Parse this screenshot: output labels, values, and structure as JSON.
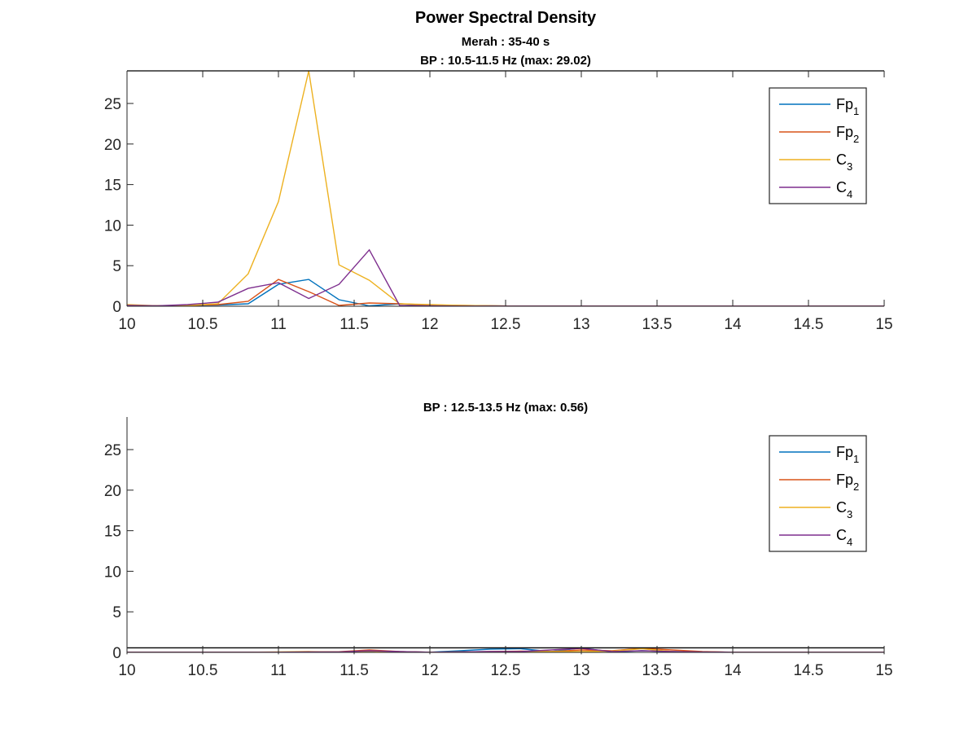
{
  "figure_title": "Power Spectral Density",
  "chart_data": [
    {
      "type": "line",
      "subtitle": "Merah : 35-40 s",
      "title": "BP : 10.5-11.5 Hz (max: 29.02)",
      "xlabel": "",
      "ylabel": "",
      "xlim": [
        10,
        15
      ],
      "ylim": [
        0,
        29.02
      ],
      "xticks": [
        "10",
        "10.5",
        "11",
        "11.5",
        "12",
        "12.5",
        "13",
        "13.5",
        "14",
        "14.5",
        "15"
      ],
      "yticks": [
        "0",
        "5",
        "10",
        "15",
        "20",
        "25"
      ],
      "grid": false,
      "legend": "top-right",
      "x": [
        10,
        10.2,
        10.4,
        10.6,
        10.8,
        11.0,
        11.2,
        11.4,
        11.6,
        11.8,
        12.0,
        12.2,
        12.4,
        12.6,
        12.8,
        13.0,
        13.2,
        13.4,
        13.6,
        13.8,
        14.0,
        14.2,
        14.4,
        14.6,
        14.8,
        15.0
      ],
      "series": [
        {
          "name": "Fp1",
          "base": "Fp",
          "sub": "1",
          "color": "#0072BD",
          "values": [
            0.05,
            0.05,
            0.1,
            0.15,
            0.3,
            2.7,
            3.3,
            0.8,
            0.05,
            0.3,
            0.1,
            0.05,
            0.05,
            0.02,
            0.02,
            0.02,
            0.02,
            0.02,
            0.02,
            0.02,
            0.02,
            0.02,
            0.02,
            0.02,
            0.02,
            0.02
          ]
        },
        {
          "name": "Fp2",
          "base": "Fp",
          "sub": "2",
          "color": "#D95319",
          "values": [
            0.1,
            0.05,
            0.1,
            0.2,
            0.6,
            3.3,
            1.8,
            0.1,
            0.4,
            0.3,
            0.15,
            0.1,
            0.05,
            0.02,
            0.02,
            0.02,
            0.02,
            0.02,
            0.02,
            0.02,
            0.02,
            0.02,
            0.02,
            0.02,
            0.02,
            0.02
          ]
        },
        {
          "name": "C3",
          "base": "C",
          "sub": "3",
          "color": "#EDB120",
          "values": [
            0.2,
            0.05,
            0.1,
            0.3,
            4.0,
            12.9,
            29.02,
            5.1,
            3.2,
            0.3,
            0.2,
            0.1,
            0.05,
            0.02,
            0.02,
            0.02,
            0.02,
            0.02,
            0.02,
            0.02,
            0.02,
            0.02,
            0.02,
            0.02,
            0.02,
            0.02
          ]
        },
        {
          "name": "C4",
          "base": "C",
          "sub": "4",
          "color": "#7E2F8E",
          "values": [
            0.1,
            0.05,
            0.2,
            0.5,
            2.2,
            2.9,
            0.95,
            2.7,
            6.95,
            0.1,
            0.05,
            0.02,
            0.02,
            0.02,
            0.02,
            0.02,
            0.02,
            0.02,
            0.02,
            0.02,
            0.02,
            0.02,
            0.02,
            0.02,
            0.02,
            0.02
          ]
        }
      ]
    },
    {
      "type": "line",
      "subtitle": "",
      "title": "BP : 12.5-13.5 Hz (max: 0.56)",
      "xlabel": "",
      "ylabel": "",
      "xlim": [
        10,
        15
      ],
      "ylim": [
        0,
        29.02
      ],
      "box_top": 0.56,
      "xticks": [
        "10",
        "10.5",
        "11",
        "11.5",
        "12",
        "12.5",
        "13",
        "13.5",
        "14",
        "14.5",
        "15"
      ],
      "yticks": [
        "0",
        "5",
        "10",
        "15",
        "20",
        "25"
      ],
      "grid": false,
      "legend": "top-right",
      "x": [
        10,
        10.2,
        10.4,
        10.6,
        10.8,
        11.0,
        11.2,
        11.4,
        11.6,
        11.8,
        12.0,
        12.2,
        12.4,
        12.6,
        12.8,
        13.0,
        13.2,
        13.4,
        13.6,
        13.8,
        14.0,
        14.2,
        14.4,
        14.6,
        14.8,
        15.0
      ],
      "series": [
        {
          "name": "Fp1",
          "base": "Fp",
          "sub": "1",
          "color": "#0072BD",
          "values": [
            0.02,
            0.02,
            0.02,
            0.02,
            0.02,
            0.02,
            0.03,
            0.05,
            0.1,
            0.08,
            0.02,
            0.2,
            0.4,
            0.45,
            0.1,
            0.56,
            0.05,
            0.2,
            0.1,
            0.05,
            0.02,
            0.02,
            0.02,
            0.02,
            0.02,
            0.02
          ]
        },
        {
          "name": "Fp2",
          "base": "Fp",
          "sub": "2",
          "color": "#D95319",
          "values": [
            0.02,
            0.02,
            0.02,
            0.02,
            0.02,
            0.02,
            0.05,
            0.08,
            0.3,
            0.1,
            0.02,
            0.05,
            0.1,
            0.15,
            0.1,
            0.3,
            0.2,
            0.5,
            0.3,
            0.1,
            0.02,
            0.02,
            0.02,
            0.02,
            0.02,
            0.02
          ]
        },
        {
          "name": "C3",
          "base": "C",
          "sub": "3",
          "color": "#EDB120",
          "values": [
            0.02,
            0.02,
            0.02,
            0.02,
            0.02,
            0.05,
            0.1,
            0.05,
            0.15,
            0.05,
            0.02,
            0.05,
            0.05,
            0.08,
            0.1,
            0.1,
            0.15,
            0.45,
            0.1,
            0.05,
            0.02,
            0.02,
            0.02,
            0.02,
            0.02,
            0.02
          ]
        },
        {
          "name": "C4",
          "base": "C",
          "sub": "4",
          "color": "#7E2F8E",
          "values": [
            0.02,
            0.02,
            0.02,
            0.02,
            0.02,
            0.02,
            0.05,
            0.05,
            0.2,
            0.1,
            0.02,
            0.05,
            0.1,
            0.1,
            0.3,
            0.5,
            0.1,
            0.2,
            0.1,
            0.05,
            0.02,
            0.02,
            0.02,
            0.02,
            0.02,
            0.02
          ]
        }
      ]
    }
  ]
}
